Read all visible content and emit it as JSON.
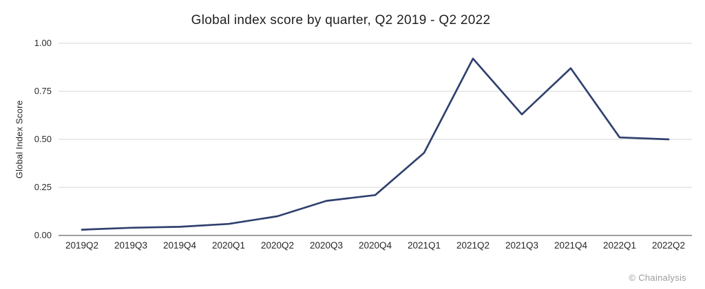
{
  "watermark": "© Chainalysis",
  "chart_data": {
    "type": "line",
    "title": "Global index score by quarter, Q2 2019 - Q2 2022",
    "ylabel": "Global Index Score",
    "xlabel": "",
    "categories": [
      "2019Q2",
      "2019Q3",
      "2019Q4",
      "2020Q1",
      "2020Q2",
      "2020Q3",
      "2020Q4",
      "2021Q1",
      "2021Q2",
      "2021Q3",
      "2021Q4",
      "2022Q1",
      "2022Q2"
    ],
    "series": [
      {
        "name": "Global Index Score",
        "values": [
          0.03,
          0.04,
          0.045,
          0.06,
          0.1,
          0.18,
          0.21,
          0.43,
          0.92,
          0.63,
          0.87,
          0.51,
          0.5
        ]
      }
    ],
    "ylim": [
      0,
      1
    ],
    "y_ticks": [
      0,
      0.25,
      0.5,
      0.75,
      1.0
    ],
    "y_tick_labels": [
      "0.00",
      "0.25",
      "0.50",
      "0.75",
      "1.00"
    ],
    "grid": "horizontal",
    "legend": "none",
    "colors": {
      "line": "#30406e",
      "grid": "#e4e4e4",
      "axis": "#9e9e9e",
      "tick_text": "#2b2b2b",
      "title_text": "#1f1f1f",
      "watermark_text": "#9b9b9b",
      "background": "#ffffff"
    }
  }
}
